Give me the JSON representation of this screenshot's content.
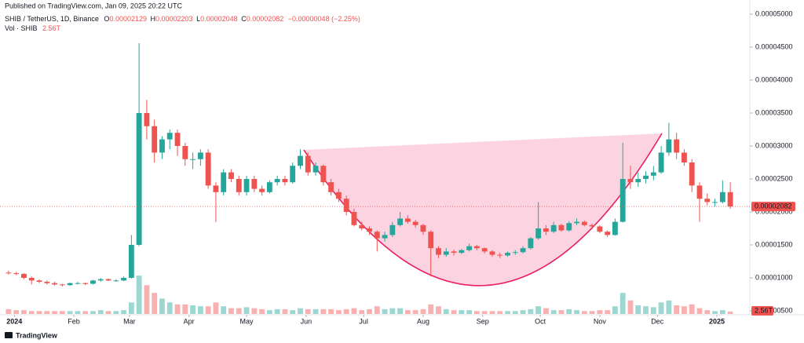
{
  "chart_data": {
    "type": "candlestick",
    "published": "Published on TradingView.com, Jan 09, 2025 20:22 UTC",
    "symbol": "SHIB / TetherUS, 1D, Binance",
    "ohlc_legend": [
      {
        "key": "O",
        "value": "0.00002129"
      },
      {
        "key": "H",
        "value": "0.00002203"
      },
      {
        "key": "L",
        "value": "0.00002048"
      },
      {
        "key": "C",
        "value": "0.00002082"
      }
    ],
    "change": "−0.00000048 (−2.25%)",
    "volume_name": "Vol · SHIB",
    "volume_value_label": "2.56T",
    "last_price_label": "0.00002082",
    "footer": "TradingView",
    "up_color": "#26a69a",
    "down_color": "#ef5350",
    "xlim": [
      "2023-12-27",
      "2025-01-10"
    ],
    "xticks": [
      {
        "value": "2024-01",
        "label": "2024"
      },
      {
        "value": "2024-02",
        "label": "Feb"
      },
      {
        "value": "2024-03",
        "label": "Mar"
      },
      {
        "value": "2024-04",
        "label": "Apr"
      },
      {
        "value": "2024-05",
        "label": "May"
      },
      {
        "value": "2024-06",
        "label": "Jun"
      },
      {
        "value": "2024-07",
        "label": "Jul"
      },
      {
        "value": "2024-08",
        "label": "Aug"
      },
      {
        "value": "2024-09",
        "label": "Sep"
      },
      {
        "value": "2024-10",
        "label": "Oct"
      },
      {
        "value": "2024-11",
        "label": "Nov"
      },
      {
        "value": "2024-12",
        "label": "Dec"
      },
      {
        "value": "2025-01",
        "label": "2025"
      }
    ],
    "ylim": [
      5e-06,
      5e-05
    ],
    "yticks": [
      {
        "value": 5e-05,
        "label": "0.00005000"
      },
      {
        "value": 4.5e-05,
        "label": "0.00004500"
      },
      {
        "value": 4e-05,
        "label": "0.00004000"
      },
      {
        "value": 3.5e-05,
        "label": "0.00003500"
      },
      {
        "value": 3e-05,
        "label": "0.00003000"
      },
      {
        "value": 2.5e-05,
        "label": "0.00002500"
      },
      {
        "value": 2e-05,
        "label": "0.00002000"
      },
      {
        "value": 1.5e-05,
        "label": "0.00001500"
      },
      {
        "value": 1e-05,
        "label": "0.00001000"
      },
      {
        "value": 5e-06,
        "label": "0.00000500"
      }
    ],
    "grid": false,
    "volume_ylim": [
      0,
      45000000000000.0
    ],
    "candles": [
      [
        1.08e-05,
        1.11e-05,
        1.05e-05,
        1.07e-05
      ],
      [
        1.07e-05,
        1.09e-05,
        1.04e-05,
        1.06e-05
      ],
      [
        1.06e-05,
        1.07e-05,
        9.8e-06,
        1e-05
      ],
      [
        1e-05,
        1.02e-05,
        9e-06,
        9.6e-06
      ],
      [
        9.6e-06,
        9.8e-06,
        9.2e-06,
        9.4e-06
      ],
      [
        9.4e-06,
        9.6e-06,
        9e-06,
        9.2e-06
      ],
      [
        9.2e-06,
        9.4e-06,
        8.8e-06,
        9e-06
      ],
      [
        9e-06,
        9.1e-06,
        8.7e-06,
        8.9e-06
      ],
      [
        8.9e-06,
        9.3e-06,
        8.8e-06,
        9.2e-06
      ],
      [
        9.2e-06,
        9.4e-06,
        9e-06,
        9.2e-06
      ],
      [
        9.2e-06,
        9.3e-06,
        8.9e-06,
        9.1e-06
      ],
      [
        9.1e-06,
        9.7e-06,
        9e-06,
        9.6e-06
      ],
      [
        9.6e-06,
        1e-05,
        9.4e-06,
        9.8e-06
      ],
      [
        9.8e-06,
        9.9e-06,
        9.5e-06,
        9.6e-06
      ],
      [
        9.6e-06,
        9.8e-06,
        9.4e-06,
        9.6e-06
      ],
      [
        9.6e-06,
        1.02e-05,
        9.5e-06,
        1e-05
      ],
      [
        1e-05,
        1.65e-05,
        9.9e-06,
        1.5e-05
      ],
      [
        1.5e-05,
        4.56e-05,
        1.48e-05,
        3.5e-05
      ],
      [
        3.5e-05,
        3.7e-05,
        3.1e-05,
        3.3e-05
      ],
      [
        3.3e-05,
        3.4e-05,
        2.75e-05,
        2.9e-05
      ],
      [
        2.9e-05,
        3.15e-05,
        2.8e-05,
        3.1e-05
      ],
      [
        3.1e-05,
        3.25e-05,
        2.95e-05,
        3.2e-05
      ],
      [
        3.2e-05,
        3.25e-05,
        2.85e-05,
        3e-05
      ],
      [
        3e-05,
        3.05e-05,
        2.7e-05,
        2.8e-05
      ],
      [
        2.8e-05,
        2.9e-05,
        2.65e-05,
        2.8e-05
      ],
      [
        2.8e-05,
        2.95e-05,
        2.7e-05,
        2.9e-05
      ],
      [
        2.9e-05,
        2.95e-05,
        2.35e-05,
        2.4e-05
      ],
      [
        2.4e-05,
        2.45e-05,
        1.85e-05,
        2.3e-05
      ],
      [
        2.3e-05,
        2.65e-05,
        2.25e-05,
        2.6e-05
      ],
      [
        2.6e-05,
        2.65e-05,
        2.45e-05,
        2.5e-05
      ],
      [
        2.5e-05,
        2.55e-05,
        2.25e-05,
        2.3e-05
      ],
      [
        2.3e-05,
        2.55e-05,
        2.25e-05,
        2.5e-05
      ],
      [
        2.5e-05,
        2.55e-05,
        2.3e-05,
        2.35e-05
      ],
      [
        2.35e-05,
        2.4e-05,
        2.25e-05,
        2.3e-05
      ],
      [
        2.3e-05,
        2.48e-05,
        2.28e-05,
        2.45e-05
      ],
      [
        2.45e-05,
        2.55e-05,
        2.4e-05,
        2.5e-05
      ],
      [
        2.5e-05,
        2.55e-05,
        2.4e-05,
        2.45e-05
      ],
      [
        2.45e-05,
        2.75e-05,
        2.43e-05,
        2.7e-05
      ],
      [
        2.7e-05,
        2.95e-05,
        2.65e-05,
        2.85e-05
      ],
      [
        2.85e-05,
        2.9e-05,
        2.55e-05,
        2.6e-05
      ],
      [
        2.6e-05,
        2.75e-05,
        2.55e-05,
        2.7e-05
      ],
      [
        2.7e-05,
        2.72e-05,
        2.4e-05,
        2.45e-05
      ],
      [
        2.45e-05,
        2.5e-05,
        2.25e-05,
        2.3e-05
      ],
      [
        2.3e-05,
        2.35e-05,
        2.15e-05,
        2.2e-05
      ],
      [
        2.2e-05,
        2.25e-05,
        1.95e-05,
        2e-05
      ],
      [
        2e-05,
        2.05e-05,
        1.78e-05,
        1.8e-05
      ],
      [
        1.8e-05,
        1.85e-05,
        1.72e-05,
        1.75e-05
      ],
      [
        1.75e-05,
        1.78e-05,
        1.65e-05,
        1.7e-05
      ],
      [
        1.7e-05,
        1.72e-05,
        1.4e-05,
        1.6e-05
      ],
      [
        1.6e-05,
        1.7e-05,
        1.55e-05,
        1.65e-05
      ],
      [
        1.65e-05,
        1.85e-05,
        1.62e-05,
        1.8e-05
      ],
      [
        1.8e-05,
        2e-05,
        1.78e-05,
        1.9e-05
      ],
      [
        1.9e-05,
        1.95e-05,
        1.82e-05,
        1.85e-05
      ],
      [
        1.85e-05,
        1.88e-05,
        1.76e-05,
        1.8e-05
      ],
      [
        1.8e-05,
        1.82e-05,
        1.65e-05,
        1.7e-05
      ],
      [
        1.7e-05,
        1.72e-05,
        1.02e-05,
        1.45e-05
      ],
      [
        1.45e-05,
        1.48e-05,
        1.3e-05,
        1.35e-05
      ],
      [
        1.35e-05,
        1.45e-05,
        1.32e-05,
        1.4e-05
      ],
      [
        1.4e-05,
        1.43e-05,
        1.34e-05,
        1.38e-05
      ],
      [
        1.38e-05,
        1.44e-05,
        1.36e-05,
        1.42e-05
      ],
      [
        1.42e-05,
        1.52e-05,
        1.4e-05,
        1.48e-05
      ],
      [
        1.48e-05,
        1.5e-05,
        1.42e-05,
        1.45e-05
      ],
      [
        1.45e-05,
        1.46e-05,
        1.37e-05,
        1.4e-05
      ],
      [
        1.4e-05,
        1.42e-05,
        1.32e-05,
        1.35e-05
      ],
      [
        1.35e-05,
        1.38e-05,
        1.3e-05,
        1.34e-05
      ],
      [
        1.34e-05,
        1.4e-05,
        1.32e-05,
        1.38e-05
      ],
      [
        1.38e-05,
        1.42e-05,
        1.35e-05,
        1.39e-05
      ],
      [
        1.39e-05,
        1.48e-05,
        1.37e-05,
        1.45e-05
      ],
      [
        1.45e-05,
        1.62e-05,
        1.43e-05,
        1.6e-05
      ],
      [
        1.6e-05,
        2.15e-05,
        1.58e-05,
        1.75e-05
      ],
      [
        1.75e-05,
        1.8e-05,
        1.65e-05,
        1.7e-05
      ],
      [
        1.7e-05,
        1.85e-05,
        1.68e-05,
        1.8e-05
      ],
      [
        1.8e-05,
        1.82e-05,
        1.7e-05,
        1.72e-05
      ],
      [
        1.72e-05,
        1.86e-05,
        1.7e-05,
        1.83e-05
      ],
      [
        1.83e-05,
        1.9e-05,
        1.8e-05,
        1.85e-05
      ],
      [
        1.85e-05,
        1.87e-05,
        1.78e-05,
        1.8e-05
      ],
      [
        1.8e-05,
        1.82e-05,
        1.74e-05,
        1.78e-05
      ],
      [
        1.78e-05,
        1.8e-05,
        1.68e-05,
        1.7e-05
      ],
      [
        1.7e-05,
        1.72e-05,
        1.62e-05,
        1.65e-05
      ],
      [
        1.65e-05,
        1.9e-05,
        1.64e-05,
        1.85e-05
      ],
      [
        1.85e-05,
        3.05e-05,
        1.84e-05,
        2.5e-05
      ],
      [
        2.5e-05,
        2.7e-05,
        2.35e-05,
        2.45e-05
      ],
      [
        2.45e-05,
        2.6e-05,
        2.38e-05,
        2.5e-05
      ],
      [
        2.5e-05,
        2.62e-05,
        2.43e-05,
        2.55e-05
      ],
      [
        2.55e-05,
        2.7e-05,
        2.48e-05,
        2.6e-05
      ],
      [
        2.6e-05,
        3e-05,
        2.58e-05,
        2.9e-05
      ],
      [
        2.9e-05,
        3.35e-05,
        2.85e-05,
        3.1e-05
      ],
      [
        3.1e-05,
        3.2e-05,
        2.8e-05,
        2.9e-05
      ],
      [
        2.9e-05,
        2.95e-05,
        2.7e-05,
        2.75e-05
      ],
      [
        2.75e-05,
        2.8e-05,
        2.3e-05,
        2.4e-05
      ],
      [
        2.4e-05,
        2.45e-05,
        1.85e-05,
        2.2e-05
      ],
      [
        2.2e-05,
        2.28e-05,
        2.1e-05,
        2.15e-05
      ],
      [
        2.15e-05,
        2.2e-05,
        2.08e-05,
        2.15e-05
      ],
      [
        2.15e-05,
        2.48e-05,
        2.13e-05,
        2.3e-05
      ],
      [
        2.3e-05,
        2.45e-05,
        2.048e-05,
        2.082e-05
      ]
    ],
    "volumes": [
      5000000000000.0,
      4000000000000.0,
      4000000000000.0,
      3000000000000.0,
      3000000000000.0,
      3000000000000.0,
      3000000000000.0,
      3000000000000.0,
      3000000000000.0,
      3000000000000.0,
      3000000000000.0,
      3000000000000.0,
      4000000000000.0,
      3000000000000.0,
      3000000000000.0,
      4000000000000.0,
      12000000000000.0,
      40000000000000.0,
      30000000000000.0,
      22000000000000.0,
      16000000000000.0,
      12000000000000.0,
      10000000000000.0,
      10000000000000.0,
      9000000000000.0,
      8000000000000.0,
      8000000000000.0,
      12000000000000.0,
      8000000000000.0,
      6000000000000.0,
      6000000000000.0,
      7000000000000.0,
      6000000000000.0,
      5000000000000.0,
      4000000000000.0,
      5000000000000.0,
      5000000000000.0,
      4000000000000.0,
      6000000000000.0,
      5000000000000.0,
      5000000000000.0,
      5000000000000.0,
      5000000000000.0,
      4000000000000.0,
      5000000000000.0,
      6000000000000.0,
      4000000000000.0,
      5000000000000.0,
      8000000000000.0,
      5000000000000.0,
      6000000000000.0,
      6000000000000.0,
      4000000000000.0,
      4000000000000.0,
      5000000000000.0,
      10000000000000.0,
      8000000000000.0,
      5000000000000.0,
      4000000000000.0,
      4000000000000.0,
      4000000000000.0,
      3000000000000.0,
      3000000000000.0,
      3000000000000.0,
      3000000000000.0,
      3000000000000.0,
      3000000000000.0,
      4000000000000.0,
      5000000000000.0,
      8000000000000.0,
      6000000000000.0,
      4000000000000.0,
      4000000000000.0,
      5000000000000.0,
      4000000000000.0,
      3000000000000.0,
      3000000000000.0,
      4000000000000.0,
      4000000000000.0,
      8000000000000.0,
      22000000000000.0,
      14000000000000.0,
      9000000000000.0,
      8000000000000.0,
      7000000000000.0,
      12000000000000.0,
      14000000000000.0,
      9000000000000.0,
      8000000000000.0,
      10000000000000.0,
      6000000000000.0,
      4000000000000.0,
      3000000000000.0,
      4000000000000.0,
      2560000000000.0
    ]
  }
}
